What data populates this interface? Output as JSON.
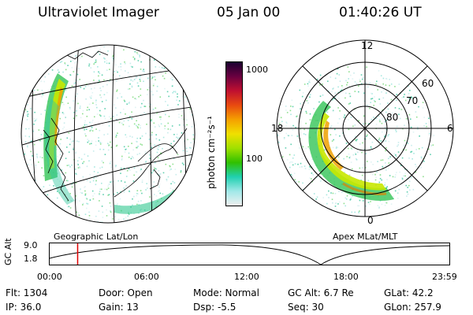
{
  "header": {
    "title": "Ultraviolet Imager",
    "date": "05 Jan 00",
    "time": "01:40:26 UT"
  },
  "colorbar": {
    "unit_label": "photon cm⁻²s⁻¹",
    "ticks": [
      "1000",
      "100"
    ],
    "palette": [
      "#1a0030",
      "#6a0040",
      "#c01030",
      "#e84a10",
      "#f5a000",
      "#f0e000",
      "#a0e000",
      "#30c000",
      "#20d0b0",
      "#a0e8e8",
      "#f0f0f0"
    ]
  },
  "polar": {
    "mlt_labels": [
      "12",
      "18",
      "6",
      "0"
    ],
    "lat_labels": [
      "60",
      "70",
      "80"
    ]
  },
  "timeline": {
    "ylabel": "GC Alt",
    "y_ticks": [
      "9.0",
      "1.8"
    ],
    "left_label": "Geographic Lat/Lon",
    "right_label": "Apex  MLat/MLT",
    "x_ticks": [
      "00:00",
      "06:00",
      "12:00",
      "18:00",
      "23:59"
    ],
    "current_time_fraction": 0.07
  },
  "info": {
    "flt": "Flt: 1304",
    "ip": "IP: 36.0",
    "door": "Door: Open",
    "gain": "Gain: 13",
    "mode": "Mode: Normal",
    "dsp": "Dsp:    -5.5",
    "gc_alt": "GC Alt: 6.7 Re",
    "seq": "Seq: 30",
    "glat": "GLat:  42.2",
    "glon": "GLon: 257.9"
  },
  "colors": {
    "marker": "#e00000",
    "speckle_bg": "#a8e8e0"
  }
}
